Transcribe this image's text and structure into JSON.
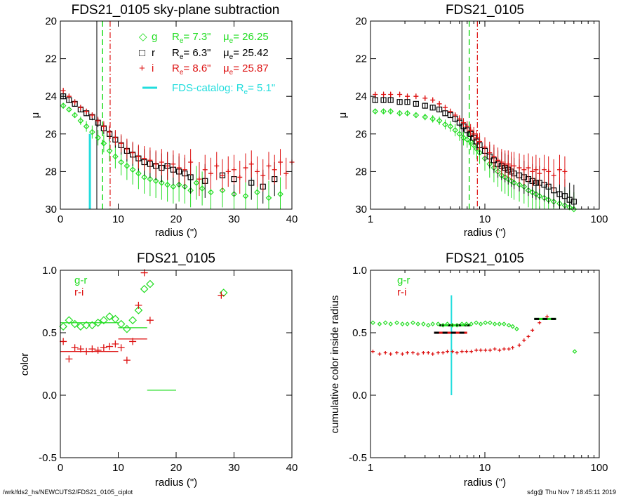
{
  "footer": {
    "left": "/wrk/fds2_hs/NEWCUTS2/FDS21_0105_ciplot",
    "right": "s4g@  Thu Nov  7 18:45:11 2019"
  },
  "colors": {
    "g": "#22dd22",
    "r": "#000000",
    "i": "#dd1111",
    "catalog": "#22dddd"
  },
  "chart_data": [
    {
      "type": "scatter",
      "title": "FDS21_0105 sky-plane subtraction",
      "xlabel": "radius (\")",
      "ylabel": "μ",
      "xlim": [
        0,
        40
      ],
      "ylim": [
        30,
        20
      ],
      "x_ticks": [
        "0",
        "10",
        "20",
        "30",
        "40"
      ],
      "y_ticks": [
        "20",
        "22",
        "24",
        "26",
        "28",
        "30"
      ],
      "legend": [
        {
          "band": "g",
          "symbol": "◇",
          "re_label": "R",
          "re_sub": "e",
          "re_value": "=  7.3\"",
          "mu_label": "μ",
          "mu_sub": "e",
          "mu_value": "= 26.25"
        },
        {
          "band": "r",
          "symbol": "□",
          "re_label": "R",
          "re_sub": "e",
          "re_value": "=  6.3\"",
          "mu_label": "μ",
          "mu_sub": "e",
          "mu_value": "= 25.42"
        },
        {
          "band": "i",
          "symbol": "+",
          "re_label": "R",
          "re_sub": "e",
          "re_value": "=  8.6\"",
          "mu_label": "μ",
          "mu_sub": "e",
          "mu_value": "= 25.87"
        }
      ],
      "catalog_label": "FDS-catalog: R",
      "catalog_sub": "e",
      "catalog_value": "=  5.1\"",
      "vlines": {
        "r": 6.3,
        "g": 7.3,
        "i": 8.6,
        "catalog": 5.1
      },
      "series": [
        {
          "band": "g",
          "x": [
            0.5,
            1.5,
            2.5,
            3.5,
            4.5,
            5.5,
            6.5,
            7.5,
            8.5,
            9.5,
            10.5,
            11.5,
            12.5,
            13.5,
            14.5,
            15.5,
            16.5,
            17.5,
            18.5,
            19.5,
            20.5,
            21.5,
            22.5,
            23.5,
            24.5,
            26,
            28,
            30,
            32,
            34,
            36,
            38
          ],
          "y": [
            24.5,
            24.7,
            25.0,
            25.3,
            25.6,
            25.9,
            26.2,
            26.5,
            26.9,
            27.2,
            27.5,
            27.7,
            27.9,
            28.1,
            28.3,
            28.4,
            28.5,
            28.6,
            28.7,
            28.8,
            28.7,
            28.8,
            29.0,
            28.6,
            28.9,
            29.1,
            29.0,
            29.2,
            29.3,
            29.1,
            29.4,
            29.2
          ]
        },
        {
          "band": "r",
          "x": [
            0.5,
            1.5,
            2.5,
            3.5,
            4.5,
            5.5,
            6.5,
            7.5,
            8.5,
            9.5,
            10.5,
            11.5,
            12.5,
            13.5,
            14.5,
            15.5,
            16.5,
            17.5,
            18.5,
            19.5,
            20.5,
            21.5,
            22.5,
            25,
            28,
            30,
            33,
            35,
            37
          ],
          "y": [
            24.0,
            24.2,
            24.4,
            24.7,
            24.9,
            25.1,
            25.4,
            25.7,
            26.0,
            26.3,
            26.6,
            26.9,
            27.1,
            27.3,
            27.5,
            27.6,
            27.7,
            27.8,
            27.7,
            27.9,
            28.0,
            28.1,
            28.3,
            28.5,
            28.2,
            28.4,
            28.6,
            28.8,
            28.4
          ]
        },
        {
          "band": "i",
          "x": [
            0.5,
            1.5,
            2.5,
            3.5,
            4.5,
            5.5,
            6.5,
            7.5,
            8.5,
            9.5,
            10.5,
            11.5,
            12.5,
            13.5,
            14.5,
            15.5,
            16.5,
            17.5,
            18.5,
            19.5,
            20.5,
            21.5,
            22.5,
            24,
            25,
            26,
            27,
            28,
            29,
            30,
            31,
            32,
            33,
            34,
            35,
            36,
            37,
            38,
            39,
            40
          ],
          "y": [
            23.7,
            24.0,
            24.3,
            24.6,
            24.8,
            25.0,
            25.3,
            25.6,
            25.9,
            26.2,
            26.5,
            26.8,
            27.0,
            27.2,
            27.3,
            27.4,
            27.6,
            27.5,
            27.7,
            27.6,
            27.8,
            27.9,
            27.5,
            28.4,
            27.9,
            28.1,
            27.7,
            28.2,
            28.0,
            27.9,
            28.3,
            27.8,
            27.6,
            28.0,
            28.2,
            27.7,
            27.9,
            27.5,
            28.1,
            27.5
          ]
        }
      ]
    },
    {
      "type": "scatter",
      "title": "FDS21_0105",
      "xlabel": "radius (\")",
      "ylabel": "μ",
      "xscale": "log",
      "xlim": [
        1,
        100
      ],
      "ylim": [
        30,
        20
      ],
      "x_ticks": [
        "1",
        "10",
        "100"
      ],
      "y_ticks": [
        "20",
        "22",
        "24",
        "26",
        "28",
        "30"
      ],
      "vlines": {
        "r": 6.3,
        "g": 7.3,
        "i": 8.6
      },
      "series": [
        {
          "band": "g",
          "x": [
            1.1,
            1.3,
            1.5,
            1.8,
            2.1,
            2.5,
            3,
            3.5,
            4,
            4.5,
            5,
            5.5,
            6,
            6.5,
            7,
            7.5,
            8,
            8.5,
            9,
            10,
            11,
            12,
            13,
            14,
            15,
            16,
            17,
            18,
            20,
            22,
            24,
            26,
            28,
            30,
            33,
            36,
            40,
            45,
            50,
            55,
            60
          ],
          "y": [
            24.8,
            24.8,
            24.8,
            24.9,
            24.9,
            25.0,
            25.1,
            25.2,
            25.3,
            25.5,
            25.6,
            25.8,
            26.0,
            26.2,
            26.3,
            26.4,
            26.6,
            26.8,
            27.0,
            27.3,
            27.6,
            27.8,
            28.0,
            28.2,
            28.3,
            28.4,
            28.5,
            28.6,
            28.7,
            28.8,
            29.0,
            29.1,
            29.2,
            29.3,
            29.4,
            29.5,
            29.6,
            29.7,
            29.8,
            29.9,
            30.0
          ]
        },
        {
          "band": "r",
          "x": [
            1.1,
            1.3,
            1.5,
            1.8,
            2.1,
            2.5,
            3,
            3.5,
            4,
            4.5,
            5,
            5.5,
            6,
            6.5,
            7,
            7.5,
            8,
            8.5,
            9,
            10,
            11,
            12,
            13,
            14,
            15,
            16,
            17,
            18,
            20,
            22,
            24,
            26,
            28,
            30,
            33,
            36,
            40,
            45,
            50,
            55,
            60
          ],
          "y": [
            24.2,
            24.2,
            24.2,
            24.3,
            24.3,
            24.4,
            24.5,
            24.6,
            24.7,
            24.9,
            25.0,
            25.2,
            25.4,
            25.6,
            25.8,
            26.0,
            26.2,
            26.4,
            26.6,
            26.9,
            27.2,
            27.4,
            27.6,
            27.7,
            27.8,
            27.9,
            28.0,
            28.1,
            28.2,
            28.3,
            28.4,
            28.5,
            28.6,
            28.6,
            28.7,
            28.8,
            29.0,
            29.2,
            29.3,
            29.5,
            29.6
          ]
        },
        {
          "band": "i",
          "x": [
            1.1,
            1.3,
            1.5,
            1.8,
            2.1,
            2.5,
            3,
            3.5,
            4,
            4.5,
            5,
            5.5,
            6,
            6.5,
            7,
            7.5,
            8,
            8.5,
            9,
            10,
            11,
            12,
            13,
            14,
            15,
            16,
            17,
            18,
            20,
            22,
            24,
            26,
            28,
            30,
            33,
            36,
            40,
            45,
            50
          ],
          "y": [
            23.9,
            23.9,
            23.9,
            23.9,
            24.0,
            24.0,
            24.1,
            24.2,
            24.4,
            24.6,
            24.8,
            25.0,
            25.2,
            25.4,
            25.6,
            25.8,
            26.0,
            26.2,
            26.4,
            26.7,
            27.0,
            27.2,
            27.4,
            27.5,
            27.6,
            27.6,
            27.7,
            27.7,
            27.8,
            27.9,
            27.8,
            28.0,
            27.9,
            28.1,
            27.9,
            28.0,
            28.2,
            27.9,
            28.0
          ]
        }
      ]
    },
    {
      "type": "scatter",
      "title": "FDS21_0105",
      "xlabel": "radius (\")",
      "ylabel": "color",
      "xlim": [
        0,
        40
      ],
      "ylim": [
        -0.5,
        1.0
      ],
      "x_ticks": [
        "0",
        "10",
        "20",
        "30",
        "40"
      ],
      "y_ticks": [
        "-0.5",
        "0.0",
        "0.5",
        "1.0"
      ],
      "legend": [
        {
          "band": "g",
          "label": "g-r"
        },
        {
          "band": "i",
          "label": "r-i"
        }
      ],
      "series": [
        {
          "band": "g",
          "name": "g-r",
          "x": [
            0.5,
            1.5,
            2.5,
            3.5,
            4.5,
            5.5,
            6.5,
            7.5,
            8.5,
            9.5,
            10.5,
            11.5,
            12.5,
            13.5,
            14.5,
            15.5,
            28.2
          ],
          "y": [
            0.55,
            0.6,
            0.57,
            0.55,
            0.56,
            0.56,
            0.58,
            0.6,
            0.63,
            0.61,
            0.57,
            0.53,
            0.6,
            0.68,
            0.85,
            0.89,
            0.82
          ]
        },
        {
          "band": "i",
          "name": "r-i",
          "x": [
            0.5,
            1.5,
            2.5,
            3.5,
            4.5,
            5.5,
            6.5,
            7.5,
            8.5,
            9.5,
            10.5,
            11.5,
            12.5,
            13.5,
            14.5,
            15.5,
            27.8
          ],
          "y": [
            0.43,
            0.29,
            0.38,
            0.37,
            0.35,
            0.37,
            0.36,
            0.38,
            0.39,
            0.41,
            0.38,
            0.28,
            0.43,
            0.72,
            0.98,
            0.6,
            0.8
          ]
        }
      ],
      "segments": [
        {
          "band": "g",
          "x0": 0,
          "x1": 10,
          "y": 0.58
        },
        {
          "band": "g",
          "x0": 10,
          "x1": 15,
          "y": 0.54
        },
        {
          "band": "g",
          "x0": 15,
          "x1": 20,
          "y": 0.04
        },
        {
          "band": "i",
          "x0": 0,
          "x1": 10,
          "y": 0.35
        },
        {
          "band": "i",
          "x0": 10,
          "x1": 15,
          "y": 0.45
        }
      ]
    },
    {
      "type": "scatter",
      "title": "FDS21_0105",
      "xlabel": "radius (\")",
      "ylabel": "cumulative color inside radius",
      "xscale": "log",
      "xlim": [
        1,
        100
      ],
      "ylim": [
        -0.5,
        1.0
      ],
      "x_ticks": [
        "1",
        "10",
        "100"
      ],
      "y_ticks": [
        "-0.5",
        "0.0",
        "0.5",
        "1.0"
      ],
      "legend": [
        {
          "band": "g",
          "label": "g-r"
        },
        {
          "band": "i",
          "label": "r-i"
        }
      ],
      "catalog_vline": 5.1,
      "catalog_vline_range": [
        0.0,
        0.8
      ],
      "series": [
        {
          "band": "g",
          "name": "g-r",
          "x": [
            1.05,
            1.2,
            1.35,
            1.5,
            1.7,
            1.9,
            2.1,
            2.35,
            2.6,
            2.9,
            3.2,
            3.5,
            3.9,
            4.3,
            4.7,
            5.2,
            5.7,
            6.3,
            6.9,
            7.6,
            8.4,
            9.2,
            10.1,
            11.1,
            12.2,
            13.4,
            14.7,
            16.2,
            17.5,
            19,
            61
          ],
          "y": [
            0.58,
            0.57,
            0.58,
            0.57,
            0.58,
            0.57,
            0.57,
            0.58,
            0.57,
            0.57,
            0.56,
            0.57,
            0.57,
            0.56,
            0.57,
            0.56,
            0.56,
            0.57,
            0.57,
            0.57,
            0.58,
            0.57,
            0.58,
            0.58,
            0.57,
            0.57,
            0.57,
            0.56,
            0.55,
            0.53,
            0.35
          ]
        },
        {
          "band": "i",
          "name": "r-i",
          "x": [
            1.05,
            1.2,
            1.35,
            1.5,
            1.7,
            1.9,
            2.1,
            2.35,
            2.6,
            2.9,
            3.2,
            3.5,
            3.9,
            4.3,
            4.7,
            5.2,
            5.7,
            6.3,
            6.9,
            7.6,
            8.4,
            9.2,
            10.1,
            11.1,
            12.2,
            13.4,
            14.7,
            16.2,
            17.5,
            20,
            22,
            24,
            26,
            30,
            35
          ],
          "y": [
            0.35,
            0.33,
            0.34,
            0.33,
            0.34,
            0.33,
            0.34,
            0.34,
            0.33,
            0.34,
            0.34,
            0.33,
            0.34,
            0.34,
            0.35,
            0.35,
            0.34,
            0.35,
            0.35,
            0.35,
            0.36,
            0.36,
            0.36,
            0.36,
            0.37,
            0.36,
            0.37,
            0.37,
            0.38,
            0.4,
            0.44,
            0.47,
            0.52,
            0.58,
            0.63
          ]
        }
      ],
      "segments": [
        {
          "band": "g",
          "x0": 4.0,
          "x1": 7.5,
          "y": 0.56,
          "style": "dashed-black"
        },
        {
          "band": "i",
          "x0": 3.6,
          "x1": 7.0,
          "y": 0.5,
          "style": "dashed-black"
        },
        {
          "band": "g",
          "x0": 27,
          "x1": 42,
          "y": 0.61,
          "style": "dashed-black"
        }
      ]
    }
  ]
}
